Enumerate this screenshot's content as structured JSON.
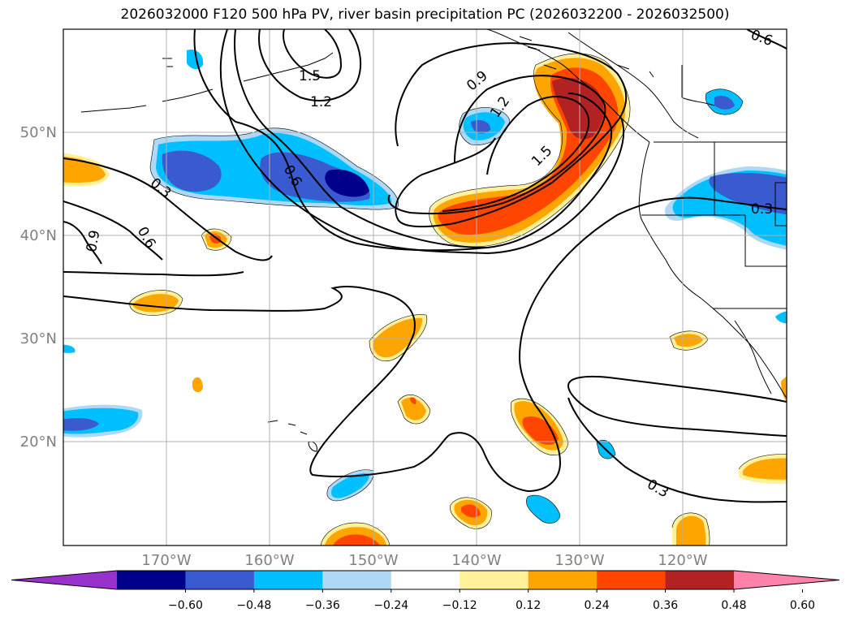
{
  "title": "2026032000 F120 500 hPa PV, river basin precipitation PC (2026032200 - 2026032500)",
  "lat_labels": [
    "50°N",
    "40°N",
    "30°N",
    "20°N"
  ],
  "lon_labels": [
    "170°W",
    "160°W",
    "150°W",
    "140°W",
    "130°W",
    "120°W"
  ],
  "colorbar": {
    "ticks": [
      "−0.60",
      "−0.48",
      "−0.36",
      "−0.24",
      "−0.12",
      "0.12",
      "0.24",
      "0.36",
      "0.48",
      "0.60"
    ],
    "colors": [
      "#9932cc",
      "#00008b",
      "#3a5bd0",
      "#00bfff",
      "#add8f6",
      "#ffffff",
      "#fff09a",
      "#ffa500",
      "#ff4500",
      "#b22222",
      "#ff82ab"
    ]
  },
  "contour_labels": [
    "1.5",
    "1.2",
    "0.9",
    "1.2",
    "1.5",
    "0.6",
    "0.3",
    "0.6",
    "0.9",
    "0.3",
    "0.3",
    "0.6"
  ],
  "colors": {
    "grid": "#b0b0b0",
    "contour": "#000000"
  }
}
